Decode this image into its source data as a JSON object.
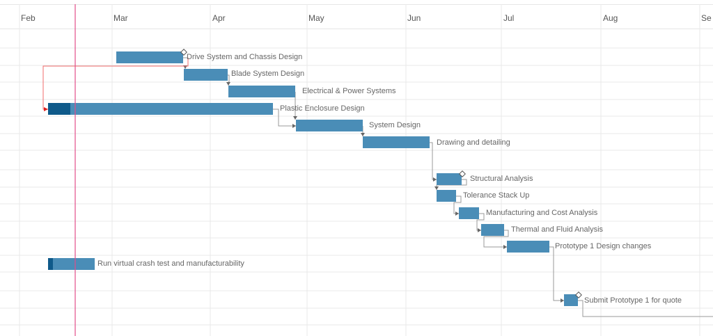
{
  "timeline": {
    "months": [
      "Feb",
      "Mar",
      "Apr",
      "May",
      "Jun",
      "Jul",
      "Aug",
      "Se"
    ]
  },
  "colors": {
    "bar": "#4a8db7",
    "bar_progress": "#0f5a8a",
    "link": "#9a9a9a",
    "critical_link": "#f06b6b",
    "today_marker": "#e24d8a",
    "grid": "#e9e9e9"
  },
  "tasks": [
    {
      "name": "Drive System and Chassis Design",
      "has_milestone_icon": true
    },
    {
      "name": "Blade System Design"
    },
    {
      "name": "Electrical & Power Systems"
    },
    {
      "name": "Plastic Enclosure Design",
      "progress_shown": true
    },
    {
      "name": "System Design"
    },
    {
      "name": "Drawing and detailing"
    },
    {
      "name": "Structural Analysis",
      "has_milestone_icon": true
    },
    {
      "name": "Tolerance Stack Up"
    },
    {
      "name": "Manufacturing and Cost Analysis"
    },
    {
      "name": "Thermal and Fluid Analysis"
    },
    {
      "name": "Prototype 1 Design changes"
    },
    {
      "name": "Run virtual crash test and manufacturability",
      "progress_shown": true
    },
    {
      "name": "Submit Prototype 1 for quote",
      "has_milestone_icon": true
    }
  ]
}
